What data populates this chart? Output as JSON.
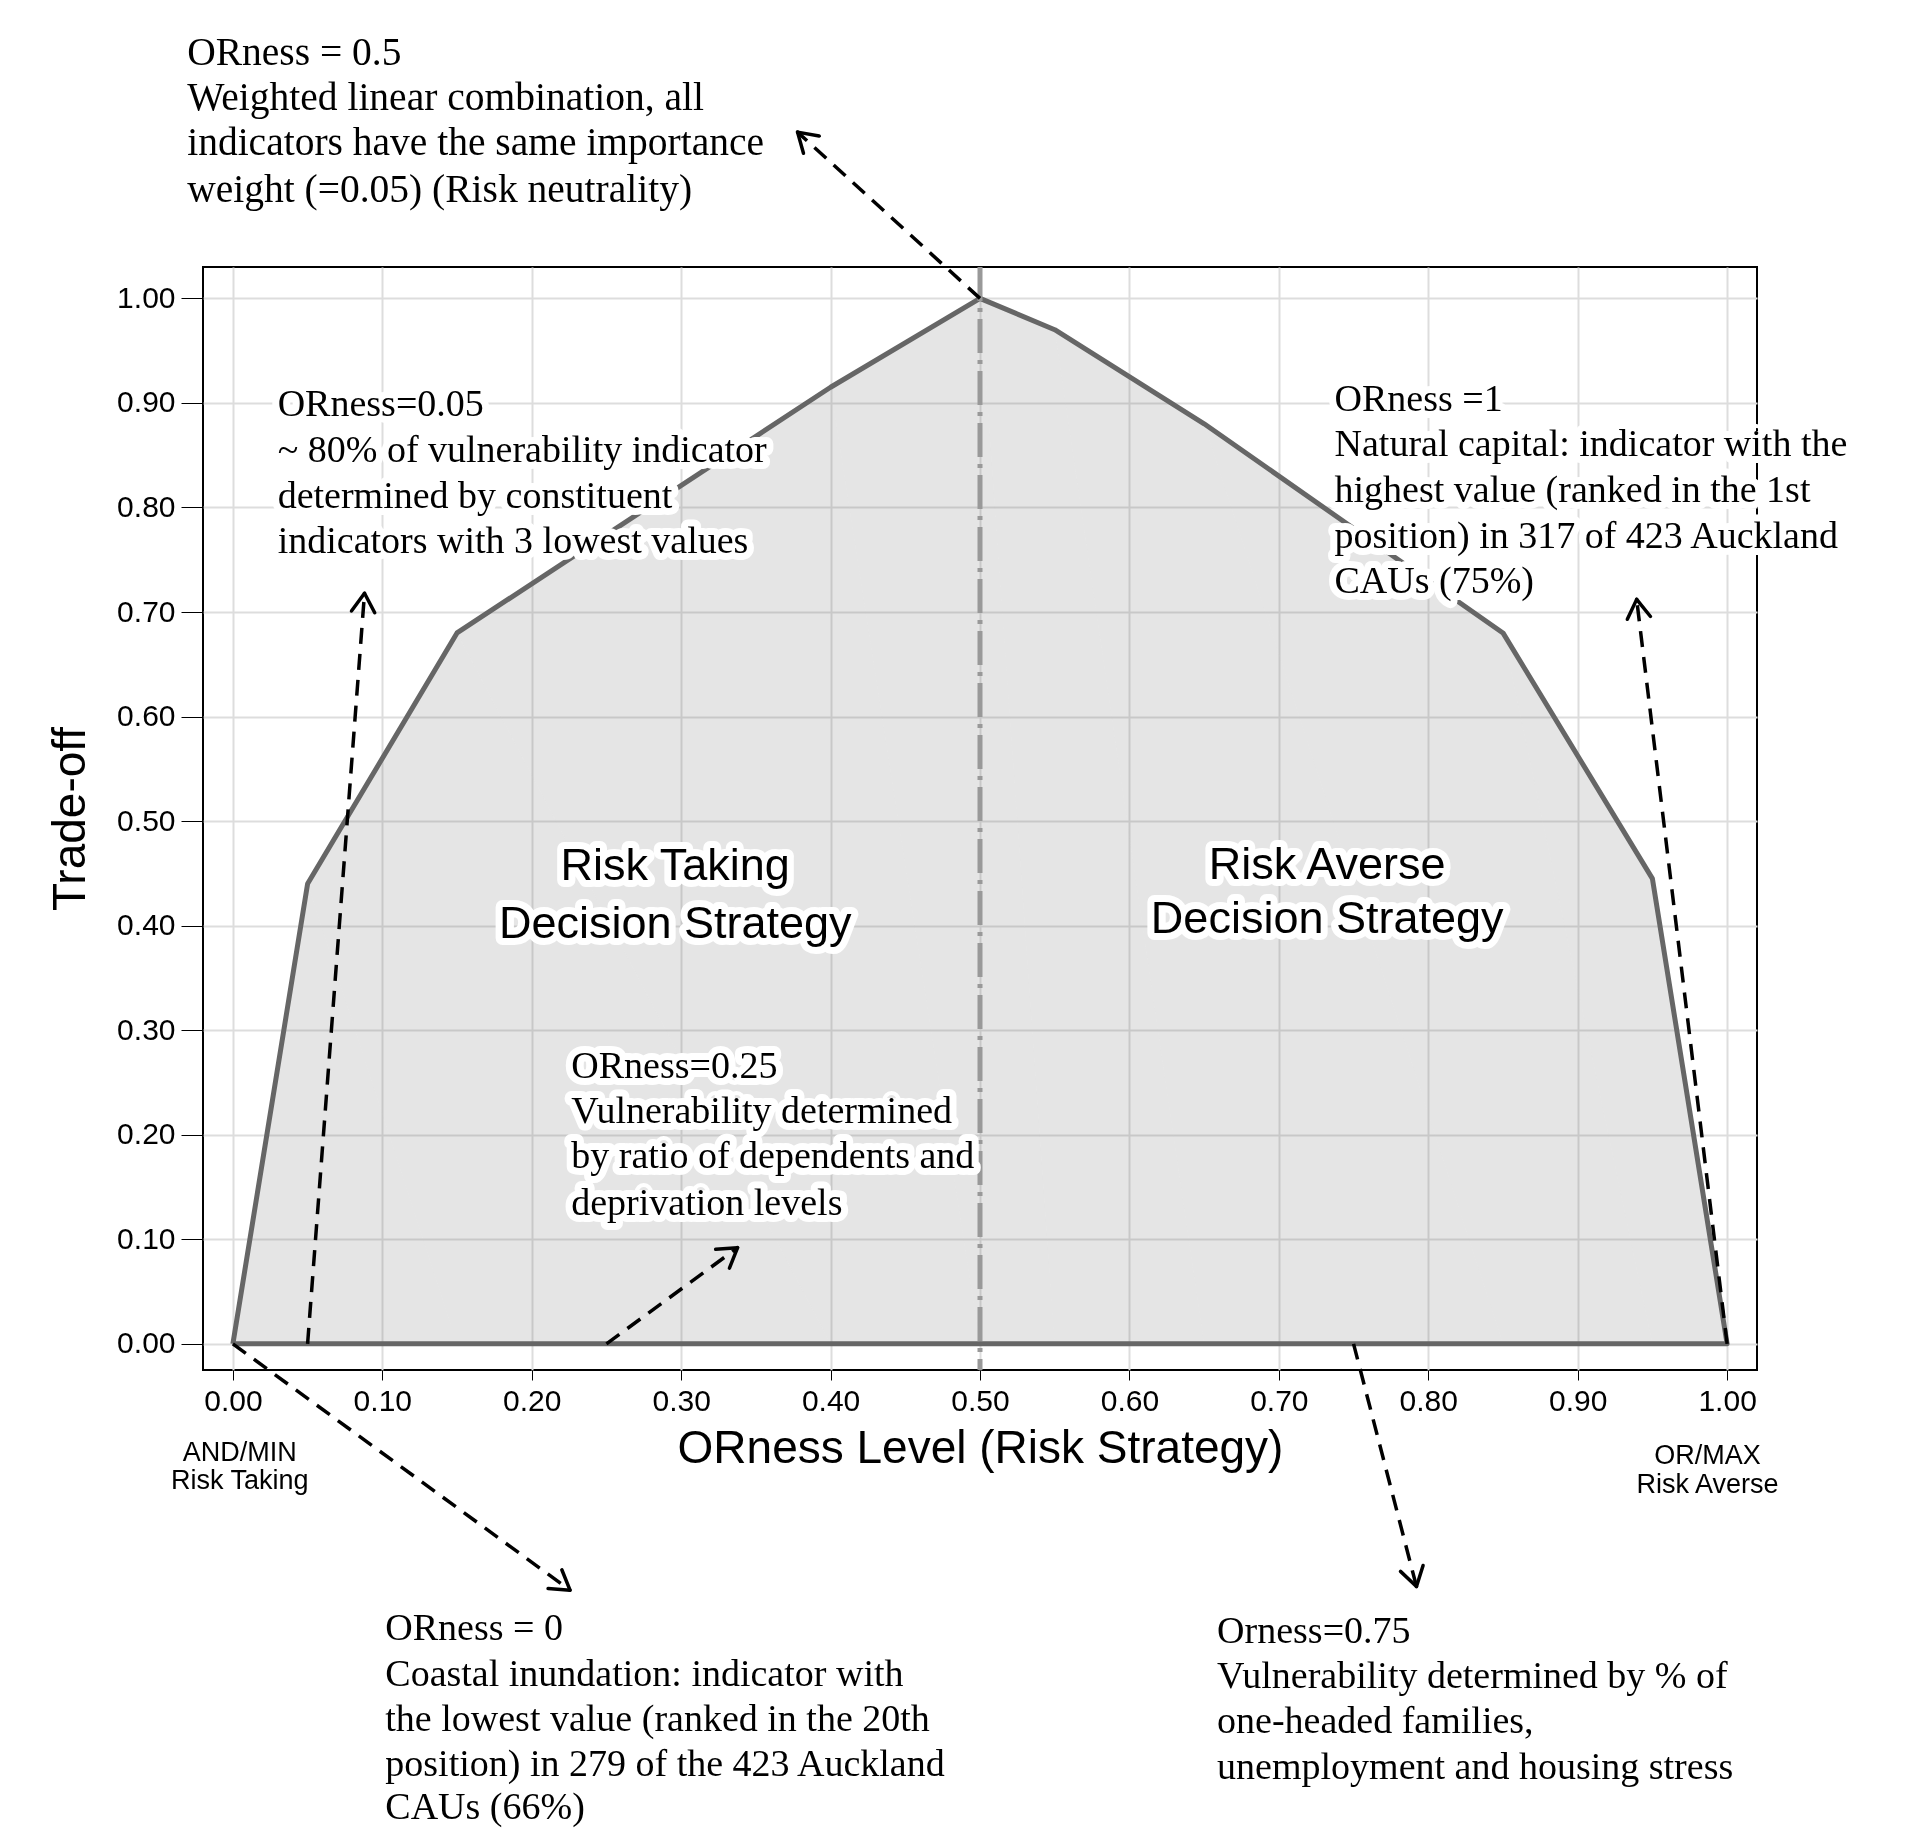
{
  "chart_data": {
    "type": "area",
    "xlabel": "ORness Level (Risk Strategy)",
    "ylabel": "Trade-off",
    "x": [
      0,
      0.05,
      0.15,
      0.4,
      0.5,
      0.55,
      0.65,
      0.85,
      0.95,
      1
    ],
    "series": [
      {
        "color": "#666666",
        "values": [
          0,
          0.44,
          0.68,
          0.915,
          1.0,
          0.97,
          0.88,
          0.68,
          0.445,
          0
        ]
      }
    ],
    "xlim": [
      -0.02,
      1.02
    ],
    "ylim": [
      -0.025,
      1.03
    ],
    "xticks": [
      {
        "value": 0,
        "label": "0.00"
      },
      {
        "value": 0.1,
        "label": "0.10"
      },
      {
        "value": 0.2,
        "label": "0.20"
      },
      {
        "value": 0.3,
        "label": "0.30"
      },
      {
        "value": 0.4,
        "label": "0.40"
      },
      {
        "value": 0.5,
        "label": "0.50"
      },
      {
        "value": 0.6,
        "label": "0.60"
      },
      {
        "value": 0.7,
        "label": "0.70"
      },
      {
        "value": 0.8,
        "label": "0.80"
      },
      {
        "value": 0.9,
        "label": "0.90"
      },
      {
        "value": 1,
        "label": "1.00"
      }
    ],
    "yticks": [
      {
        "value": 0,
        "label": "0.00"
      },
      {
        "value": 0.1,
        "label": "0.10"
      },
      {
        "value": 0.2,
        "label": "0.20"
      },
      {
        "value": 0.3,
        "label": "0.30"
      },
      {
        "value": 0.4,
        "label": "0.40"
      },
      {
        "value": 0.5,
        "label": "0.50"
      },
      {
        "value": 0.6,
        "label": "0.60"
      },
      {
        "value": 0.7,
        "label": "0.70"
      },
      {
        "value": 0.8,
        "label": "0.80"
      },
      {
        "value": 0.9,
        "label": "0.90"
      },
      {
        "value": 1,
        "label": "1.00"
      }
    ],
    "ref_lines": [
      {
        "axis": "x",
        "value": 0.5,
        "color": "#999999",
        "line_style": "dashed"
      }
    ],
    "grid": true,
    "legend": false,
    "annotations": [
      {
        "text": "ORness = 0.5\nWeighted linear combination, all\nindicators have the same importance\nweight (=0.05) (Risk neutrality)",
        "x": 0.5,
        "y": 1.0
      },
      {
        "text": "ORness=0.05\n~ 80% of vulnerability indicator\ndetermined by constituent\nindicators with 3 lowest values",
        "x": 0.05,
        "y": 0
      },
      {
        "text": "ORness =1\nNatural capital: indicator with the\nhighest value (ranked in the 1st\nposition) in 317 of 423 Auckland\nCAUs (75%)",
        "x": 1,
        "y": 0
      },
      {
        "text": "ORness=0.25\nVulnerability determined\nby ratio of dependents and\ndeprivation levels",
        "x": 0.25,
        "y": 0
      },
      {
        "text": "ORness = 0\nCoastal inundation: indicator with\nthe lowest value (ranked in the 20th\nposition) in 279 of the 423 Auckland\nCAUs (66%)",
        "x": 0,
        "y": 0
      },
      {
        "text": "Orness=0.75\nVulnerability determined by % of\none-headed families,\nunemployment and housing stress",
        "x": 0.75,
        "y": 0
      },
      "Risk Taking\nDecision Strategy",
      "Risk Averse\nDecision Strategy",
      "AND/MIN\nRisk Taking",
      "OR/MAX\nRisk Averse"
    ]
  }
}
